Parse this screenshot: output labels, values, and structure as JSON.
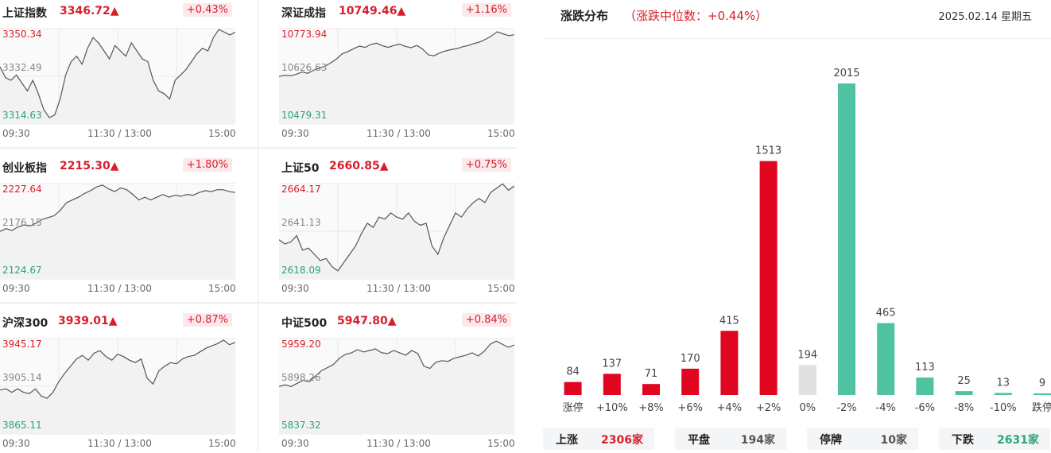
{
  "indices": [
    {
      "name": "上证指数",
      "value": "3346.72",
      "pct": "+0.43%",
      "y_high": "3350.34",
      "y_mid": "3332.49",
      "y_low": "3314.63",
      "series": [
        3336,
        3332,
        3331,
        3333,
        3330,
        3327,
        3331,
        3326,
        3320,
        3317,
        3318,
        3324,
        3333,
        3338,
        3340,
        3337,
        3343,
        3347,
        3345,
        3342,
        3339,
        3344,
        3342,
        3340,
        3345,
        3342,
        3339,
        3338,
        3331,
        3327,
        3326,
        3324,
        3331,
        3333,
        3335,
        3338,
        3341,
        3343,
        3342,
        3347,
        3350,
        3349,
        3348,
        3349
      ]
    },
    {
      "name": "深证成指",
      "value": "10749.46",
      "pct": "+1.16%",
      "y_high": "10773.94",
      "y_mid": "10626.63",
      "y_low": "10479.31",
      "series": [
        10626,
        10630,
        10628,
        10633,
        10640,
        10636,
        10645,
        10652,
        10658,
        10668,
        10680,
        10696,
        10703,
        10712,
        10720,
        10716,
        10725,
        10729,
        10721,
        10716,
        10722,
        10726,
        10719,
        10715,
        10722,
        10711,
        10693,
        10690,
        10699,
        10705,
        10709,
        10712,
        10718,
        10722,
        10728,
        10733,
        10741,
        10751,
        10764,
        10758,
        10752,
        10755
      ]
    },
    {
      "name": "创业板指",
      "value": "2215.30",
      "pct": "+1.80%",
      "y_high": "2227.64",
      "y_mid": "2176.15",
      "y_low": "2124.67",
      "series": [
        2176,
        2179,
        2177,
        2181,
        2183,
        2182,
        2185,
        2189,
        2191,
        2193,
        2199,
        2207,
        2210,
        2213,
        2217,
        2220,
        2224,
        2226,
        2222,
        2219,
        2223,
        2221,
        2216,
        2210,
        2213,
        2210,
        2213,
        2216,
        2213,
        2215,
        2214,
        2216,
        2215,
        2218,
        2220,
        2219,
        2221,
        2221,
        2219,
        2218
      ]
    },
    {
      "name": "上证50",
      "value": "2660.85",
      "pct": "+0.75%",
      "y_high": "2664.17",
      "y_mid": "2641.13",
      "y_low": "2618.09",
      "series": [
        2637,
        2635,
        2636,
        2639,
        2632,
        2633,
        2630,
        2627,
        2628,
        2624,
        2622,
        2626,
        2630,
        2634,
        2640,
        2645,
        2643,
        2648,
        2647,
        2650,
        2648,
        2647,
        2650,
        2646,
        2644,
        2645,
        2634,
        2630,
        2638,
        2644,
        2650,
        2648,
        2652,
        2655,
        2657,
        2655,
        2660,
        2662,
        2664,
        2661,
        2663
      ]
    },
    {
      "name": "沪深300",
      "value": "3939.01",
      "pct": "+0.87%",
      "y_high": "3945.17",
      "y_mid": "3905.14",
      "y_low": "3865.11",
      "series": [
        3902,
        3903,
        3900,
        3903,
        3900,
        3899,
        3903,
        3897,
        3895,
        3900,
        3909,
        3916,
        3922,
        3928,
        3931,
        3927,
        3933,
        3935,
        3930,
        3927,
        3932,
        3930,
        3927,
        3925,
        3928,
        3912,
        3907,
        3918,
        3922,
        3925,
        3924,
        3928,
        3930,
        3931,
        3934,
        3937,
        3939,
        3941,
        3944,
        3940,
        3942
      ]
    },
    {
      "name": "中证500",
      "value": "5947.80",
      "pct": "+0.84%",
      "y_high": "5959.20",
      "y_mid": "5898.26",
      "y_low": "5837.32",
      "series": [
        5898,
        5900,
        5898,
        5902,
        5906,
        5904,
        5911,
        5918,
        5922,
        5926,
        5934,
        5939,
        5941,
        5945,
        5942,
        5944,
        5946,
        5941,
        5940,
        5944,
        5941,
        5938,
        5944,
        5940,
        5924,
        5921,
        5929,
        5931,
        5930,
        5934,
        5936,
        5938,
        5941,
        5937,
        5943,
        5952,
        5956,
        5952,
        5948,
        5951
      ]
    }
  ],
  "time_axis": {
    "start": "09:30",
    "mid": "11:30 / 13:00",
    "end": "15:00"
  },
  "distribution": {
    "title": "涨跌分布",
    "subtitle": "（涨跌中位数：+0.44%）",
    "date": "2025.02.14 星期五",
    "colors": {
      "up": "#e0061f",
      "flat": "#e0e0e0",
      "down": "#4fc3a1"
    }
  },
  "chart_data": {
    "type": "bar",
    "title": "涨跌分布",
    "categories": [
      "涨停",
      "+10%",
      "+8%",
      "+6%",
      "+4%",
      "+2%",
      "0%",
      "-2%",
      "-4%",
      "-6%",
      "-8%",
      "-10%",
      "跌停"
    ],
    "values": [
      84,
      137,
      71,
      170,
      415,
      1513,
      194,
      2015,
      465,
      113,
      25,
      13,
      9
    ],
    "bar_colors": [
      "up",
      "up",
      "up",
      "up",
      "up",
      "up",
      "flat",
      "down",
      "down",
      "down",
      "down",
      "down",
      "down"
    ],
    "ylim": [
      0,
      2015
    ]
  },
  "summary": [
    {
      "label": "上涨",
      "value": "2306家",
      "color": "#d81e2c"
    },
    {
      "label": "平盘",
      "value": "194家",
      "color": "#555555"
    },
    {
      "label": "停牌",
      "value": "10家",
      "color": "#555555"
    },
    {
      "label": "下跌",
      "value": "2631家",
      "color": "#2aa478"
    }
  ]
}
